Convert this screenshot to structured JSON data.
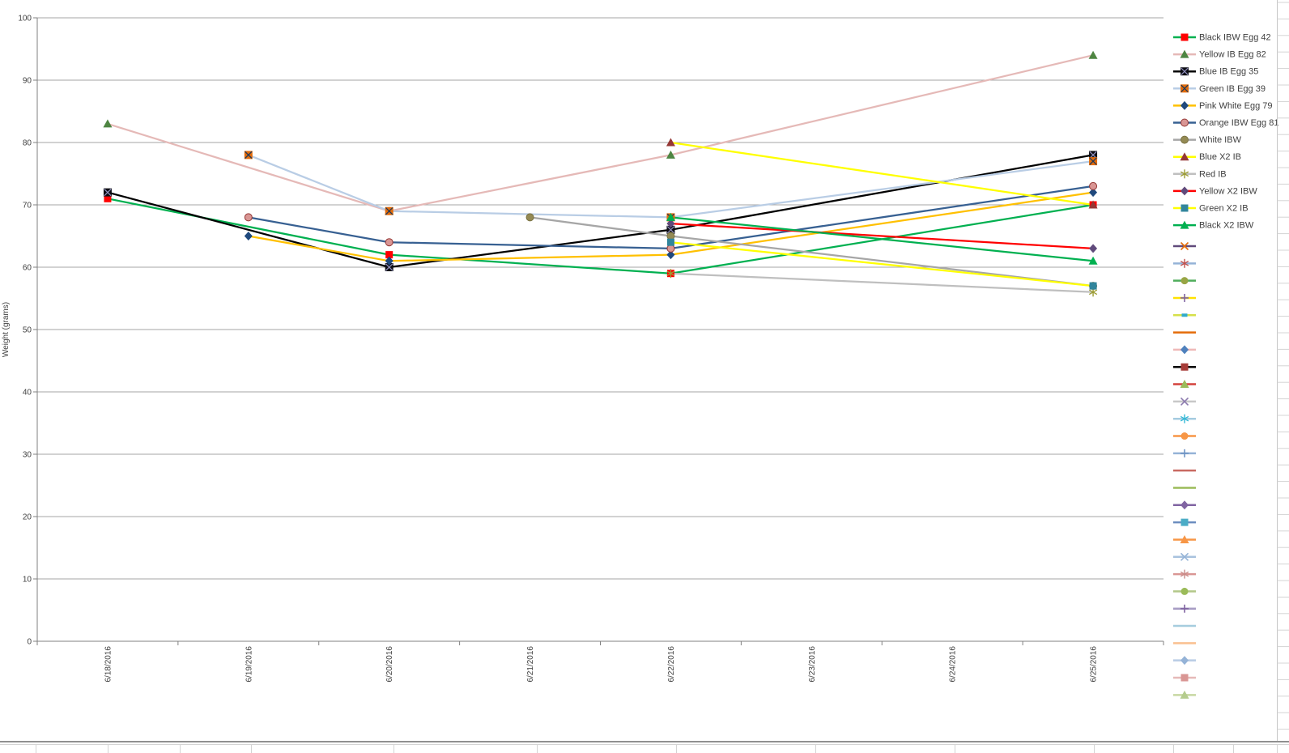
{
  "chart_data": {
    "type": "line",
    "title": "",
    "ylabel": "Weight (grams)",
    "xlabel": "",
    "categories": [
      "6/18/2016",
      "6/19/2016",
      "6/20/2016",
      "6/21/2016",
      "6/22/2016",
      "6/23/2016",
      "6/24/2016",
      "6/25/2016"
    ],
    "ylim": [
      0,
      100
    ],
    "yticks": [
      0,
      10,
      20,
      30,
      40,
      50,
      60,
      70,
      80,
      90,
      100
    ],
    "grid": "horizontal",
    "legend_position": "right",
    "series": [
      {
        "name": "Black IBW Egg 42",
        "line_color": "#00B050",
        "marker": "square",
        "marker_color": "#FF0000",
        "values": [
          71,
          null,
          62,
          null,
          59,
          null,
          null,
          70
        ]
      },
      {
        "name": "Yellow IB Egg 82",
        "line_color": "#E5B9B7",
        "marker": "triangle",
        "marker_color": "#4E8542",
        "values": [
          83,
          null,
          69,
          null,
          78,
          null,
          null,
          94
        ]
      },
      {
        "name": "Blue IB Egg 35",
        "line_color": "#000000",
        "marker": "square-x",
        "marker_color": "#0D0D14",
        "x_color": "#9090BE",
        "values": [
          72,
          null,
          60,
          null,
          66,
          null,
          null,
          78
        ]
      },
      {
        "name": "Green IB Egg 39",
        "line_color": "#B9CDE5",
        "marker": "square-x",
        "marker_color": "#E26B0A",
        "x_color": "#17375E",
        "values": [
          null,
          78,
          69,
          null,
          68,
          null,
          null,
          77
        ]
      },
      {
        "name": "Pink White Egg 79",
        "line_color": "#FFC000",
        "marker": "diamond",
        "marker_color": "#1F497D",
        "values": [
          null,
          65,
          61,
          null,
          62,
          null,
          null,
          72
        ]
      },
      {
        "name": "Orange IBW Egg 81",
        "line_color": "#376092",
        "marker": "circle",
        "marker_color": "#D99694",
        "marker_stroke": "#953735",
        "values": [
          null,
          68,
          64,
          null,
          63,
          null,
          null,
          73
        ]
      },
      {
        "name": "White IBW",
        "line_color": "#A6A6A6",
        "marker": "circle",
        "marker_color": "#948A54",
        "marker_stroke": "#7A7243",
        "values": [
          null,
          null,
          null,
          68,
          65,
          null,
          null,
          57
        ]
      },
      {
        "name": "Blue X2 IB",
        "line_color": "#FFFF00",
        "marker": "triangle",
        "marker_color": "#953735",
        "values": [
          null,
          null,
          null,
          null,
          80,
          null,
          null,
          70
        ]
      },
      {
        "name": "Red IB",
        "line_color": "#BFBFBF",
        "marker": "asterisk",
        "marker_color": "#9C9C34",
        "values": [
          null,
          null,
          null,
          null,
          59,
          null,
          null,
          56
        ]
      },
      {
        "name": "Yellow X2 IBW",
        "line_color": "#FF0000",
        "marker": "diamond",
        "marker_color": "#604A7B",
        "values": [
          null,
          null,
          null,
          null,
          67,
          null,
          null,
          63
        ]
      },
      {
        "name": "Green X2 IB",
        "line_color": "#FFFF00",
        "marker": "square",
        "marker_color": "#31859C",
        "values": [
          null,
          null,
          null,
          null,
          64,
          null,
          null,
          57
        ]
      },
      {
        "name": "Black X2 IBW",
        "line_color": "#00B050",
        "marker": "triangle",
        "marker_color": "#00B050",
        "values": [
          null,
          null,
          null,
          null,
          68,
          null,
          null,
          61
        ]
      }
    ],
    "legend_extra": [
      {
        "line_color": "#604A7B",
        "marker": "x",
        "marker_color": "#E46C0A"
      },
      {
        "line_color": "#95B3D7",
        "marker": "asterisk",
        "marker_color": "#C0504D"
      },
      {
        "line_color": "#4FAD5B",
        "marker": "circle",
        "marker_color": "#98A545"
      },
      {
        "line_color": "#FFE100",
        "marker": "plus",
        "marker_color": "#8064A2"
      },
      {
        "line_color": "#D6E04A",
        "marker": "dash",
        "marker_color": "#31ABC9"
      },
      {
        "line_color": "#E46C0A",
        "marker": "none",
        "marker_color": ""
      },
      {
        "line_color": "#EFB9B8",
        "marker": "diamond",
        "marker_color": "#4F81BD"
      },
      {
        "line_color": "#000000",
        "marker": "square",
        "marker_color": "#A63C38"
      },
      {
        "line_color": "#D3423C",
        "marker": "triangle",
        "marker_color": "#9BBB59"
      },
      {
        "line_color": "#C8C8C8",
        "marker": "x",
        "marker_color": "#8C7BAE"
      },
      {
        "line_color": "#A5CBE0",
        "marker": "asterisk",
        "marker_color": "#33B8D6"
      },
      {
        "line_color": "#F79646",
        "marker": "circle",
        "marker_color": "#F79646"
      },
      {
        "line_color": "#95B3D7",
        "marker": "plus",
        "marker_color": "#6F94C4"
      },
      {
        "line_color": "#C96A62",
        "marker": "none",
        "marker_color": ""
      },
      {
        "line_color": "#9BBB59",
        "marker": "none",
        "marker_color": ""
      },
      {
        "line_color": "#8064A2",
        "marker": "diamond",
        "marker_color": "#8064A2"
      },
      {
        "line_color": "#6C8EBF",
        "marker": "square",
        "marker_color": "#4BACC6"
      },
      {
        "line_color": "#F79646",
        "marker": "triangle",
        "marker_color": "#F79646"
      },
      {
        "line_color": "#A9C2DE",
        "marker": "x",
        "marker_color": "#95B3D7"
      },
      {
        "line_color": "#D99694",
        "marker": "asterisk",
        "marker_color": "#C98B88"
      },
      {
        "line_color": "#B3C889",
        "marker": "circle",
        "marker_color": "#9BBB59"
      },
      {
        "line_color": "#A79CC4",
        "marker": "plus",
        "marker_color": "#8064A2"
      },
      {
        "line_color": "#A6CDDE",
        "marker": "none",
        "marker_color": ""
      },
      {
        "line_color": "#FAC090",
        "marker": "none",
        "marker_color": ""
      },
      {
        "line_color": "#B8CCE4",
        "marker": "diamond",
        "marker_color": "#95B3D7"
      },
      {
        "line_color": "#E6B9B8",
        "marker": "square",
        "marker_color": "#D99694"
      },
      {
        "line_color": "#C7D8A2",
        "marker": "triangle",
        "marker_color": "#B5CC8E"
      }
    ],
    "colors": {
      "gridline": "#A6A6A6",
      "axis": "#808080",
      "tick_text": "#404040",
      "worksheet_grid": "#D4D4D4",
      "worksheet_border": "#909090"
    }
  }
}
